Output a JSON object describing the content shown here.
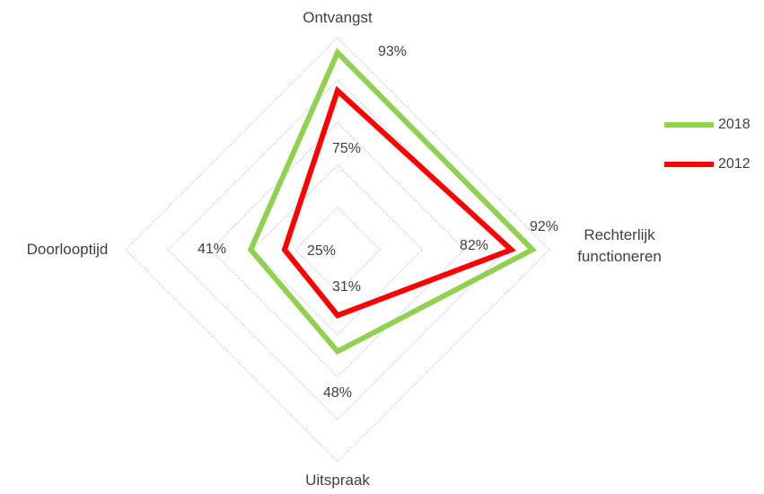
{
  "chart_data": {
    "type": "radar",
    "categories": [
      "Ontvangst",
      "Rechterlijk functioneren",
      "Uitspraak",
      "Doorlooptijd"
    ],
    "rlim": [
      0,
      100
    ],
    "rticks": [
      0,
      20,
      40,
      60,
      80,
      100
    ],
    "grid": true,
    "legend": "right",
    "series": [
      {
        "name": "2018",
        "color": "#92d050",
        "values": [
          93,
          92,
          48,
          41
        ],
        "value_labels": [
          "93%",
          "92%",
          "48%",
          "41%"
        ]
      },
      {
        "name": "2012",
        "color": "#ff0000",
        "values": [
          75,
          82,
          31,
          25
        ],
        "value_labels": [
          "75%",
          "82%",
          "31%",
          "25%"
        ]
      }
    ]
  }
}
